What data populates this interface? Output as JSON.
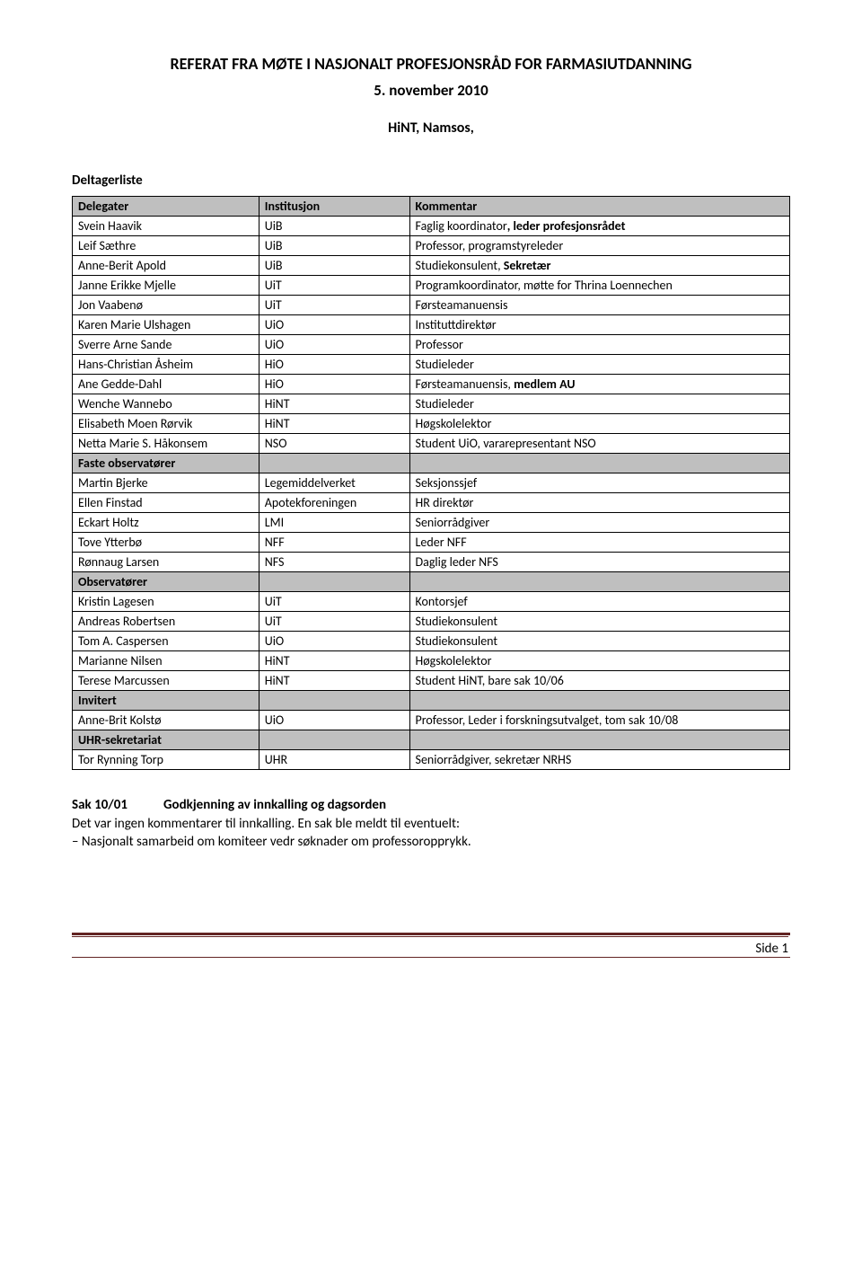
{
  "header": {
    "title": "REFERAT FRA MØTE I NASJONALT PROFESJONSRÅD FOR FARMASIUTDANNING",
    "subtitle": "5. november 2010",
    "location": "HiNT, Namsos,",
    "list_heading": "Deltagerliste"
  },
  "table": {
    "columns": [
      "Delegater",
      "Institusjon",
      "Kommentar"
    ],
    "col_widths": [
      "26%",
      "21%",
      "53%"
    ],
    "sections": [
      {
        "label": null,
        "rows": [
          {
            "name": "Svein Haavik",
            "inst": "UiB",
            "comment_prefix": "Faglig koordinator",
            "comment_bold": ", leder profesjonsrådet"
          },
          {
            "name": "Leif Sæthre",
            "inst": "UiB",
            "comment": "Professor, programstyreleder"
          },
          {
            "name": "Anne-Berit Apold",
            "inst": "UiB",
            "comment_prefix": "Studiekonsulent, ",
            "comment_bold": "Sekretær"
          },
          {
            "name": "Janne Erikke Mjelle",
            "inst": "UiT",
            "comment": "Programkoordinator, møtte for Thrina Loennechen"
          },
          {
            "name": "Jon Vaabenø",
            "inst": "UiT",
            "comment": "Førsteamanuensis"
          },
          {
            "name": "Karen Marie Ulshagen",
            "inst": "UiO",
            "comment": "Instituttdirektør"
          },
          {
            "name": "Sverre Arne Sande",
            "inst": "UiO",
            "comment": "Professor"
          },
          {
            "name": "Hans-Christian Åsheim",
            "inst": "HiO",
            "comment": "Studieleder"
          },
          {
            "name": "Ane Gedde-Dahl",
            "inst": "HiO",
            "comment_prefix": "Førsteamanuensis, ",
            "comment_bold": "medlem AU"
          },
          {
            "name": "Wenche Wannebo",
            "inst": "HiNT",
            "comment": "Studieleder"
          },
          {
            "name": "Elisabeth Moen Rørvik",
            "inst": "HiNT",
            "comment": "Høgskolelektor"
          },
          {
            "name": "Netta Marie S. Håkonsem",
            "inst": "NSO",
            "comment": "Student UiO, vararepresentant NSO"
          }
        ]
      },
      {
        "label": "Faste observatører",
        "rows": [
          {
            "name": "Martin Bjerke",
            "inst": "Legemiddelverket",
            "comment": "Seksjonssjef"
          },
          {
            "name": "Ellen Finstad",
            "inst": "Apotekforeningen",
            "comment": "HR direktør"
          },
          {
            "name": "Eckart Holtz",
            "inst": "LMI",
            "comment": "Seniorrådgiver"
          },
          {
            "name": "Tove Ytterbø",
            "inst": "NFF",
            "comment": "Leder NFF"
          },
          {
            "name": "Rønnaug Larsen",
            "inst": "NFS",
            "comment": "Daglig leder NFS"
          }
        ]
      },
      {
        "label": "Observatører",
        "rows": [
          {
            "name": "Kristin Lagesen",
            "inst": "UiT",
            "comment": "Kontorsjef"
          },
          {
            "name": "Andreas Robertsen",
            "inst": "UiT",
            "comment": "Studiekonsulent"
          },
          {
            "name": "Tom A. Caspersen",
            "inst": "UiO",
            "comment": "Studiekonsulent"
          },
          {
            "name": "Marianne Nilsen",
            "inst": "HiNT",
            "comment": "Høgskolelektor"
          },
          {
            "name": "Terese Marcussen",
            "inst": "HiNT",
            "comment": "Student HiNT, bare sak 10/06"
          }
        ]
      },
      {
        "label": "Invitert",
        "rows": [
          {
            "name": "Anne-Brit Kolstø",
            "inst": "UiO",
            "comment": "Professor, Leder i forskningsutvalget, tom sak 10/08"
          }
        ]
      },
      {
        "label": "UHR-sekretariat",
        "rows": [
          {
            "name": "Tor Rynning Torp",
            "inst": "UHR",
            "comment": "Seniorrådgiver, sekretær NRHS"
          }
        ]
      }
    ]
  },
  "sak": {
    "number": "Sak 10/01",
    "title": "Godkjenning av innkalling og dagsorden",
    "body_line1": "Det var ingen kommentarer til innkalling. En sak ble meldt til eventuelt:",
    "body_line2": "– Nasjonalt samarbeid om komiteer vedr søknader om professoropprykk."
  },
  "footer": {
    "text": "Side 1"
  }
}
